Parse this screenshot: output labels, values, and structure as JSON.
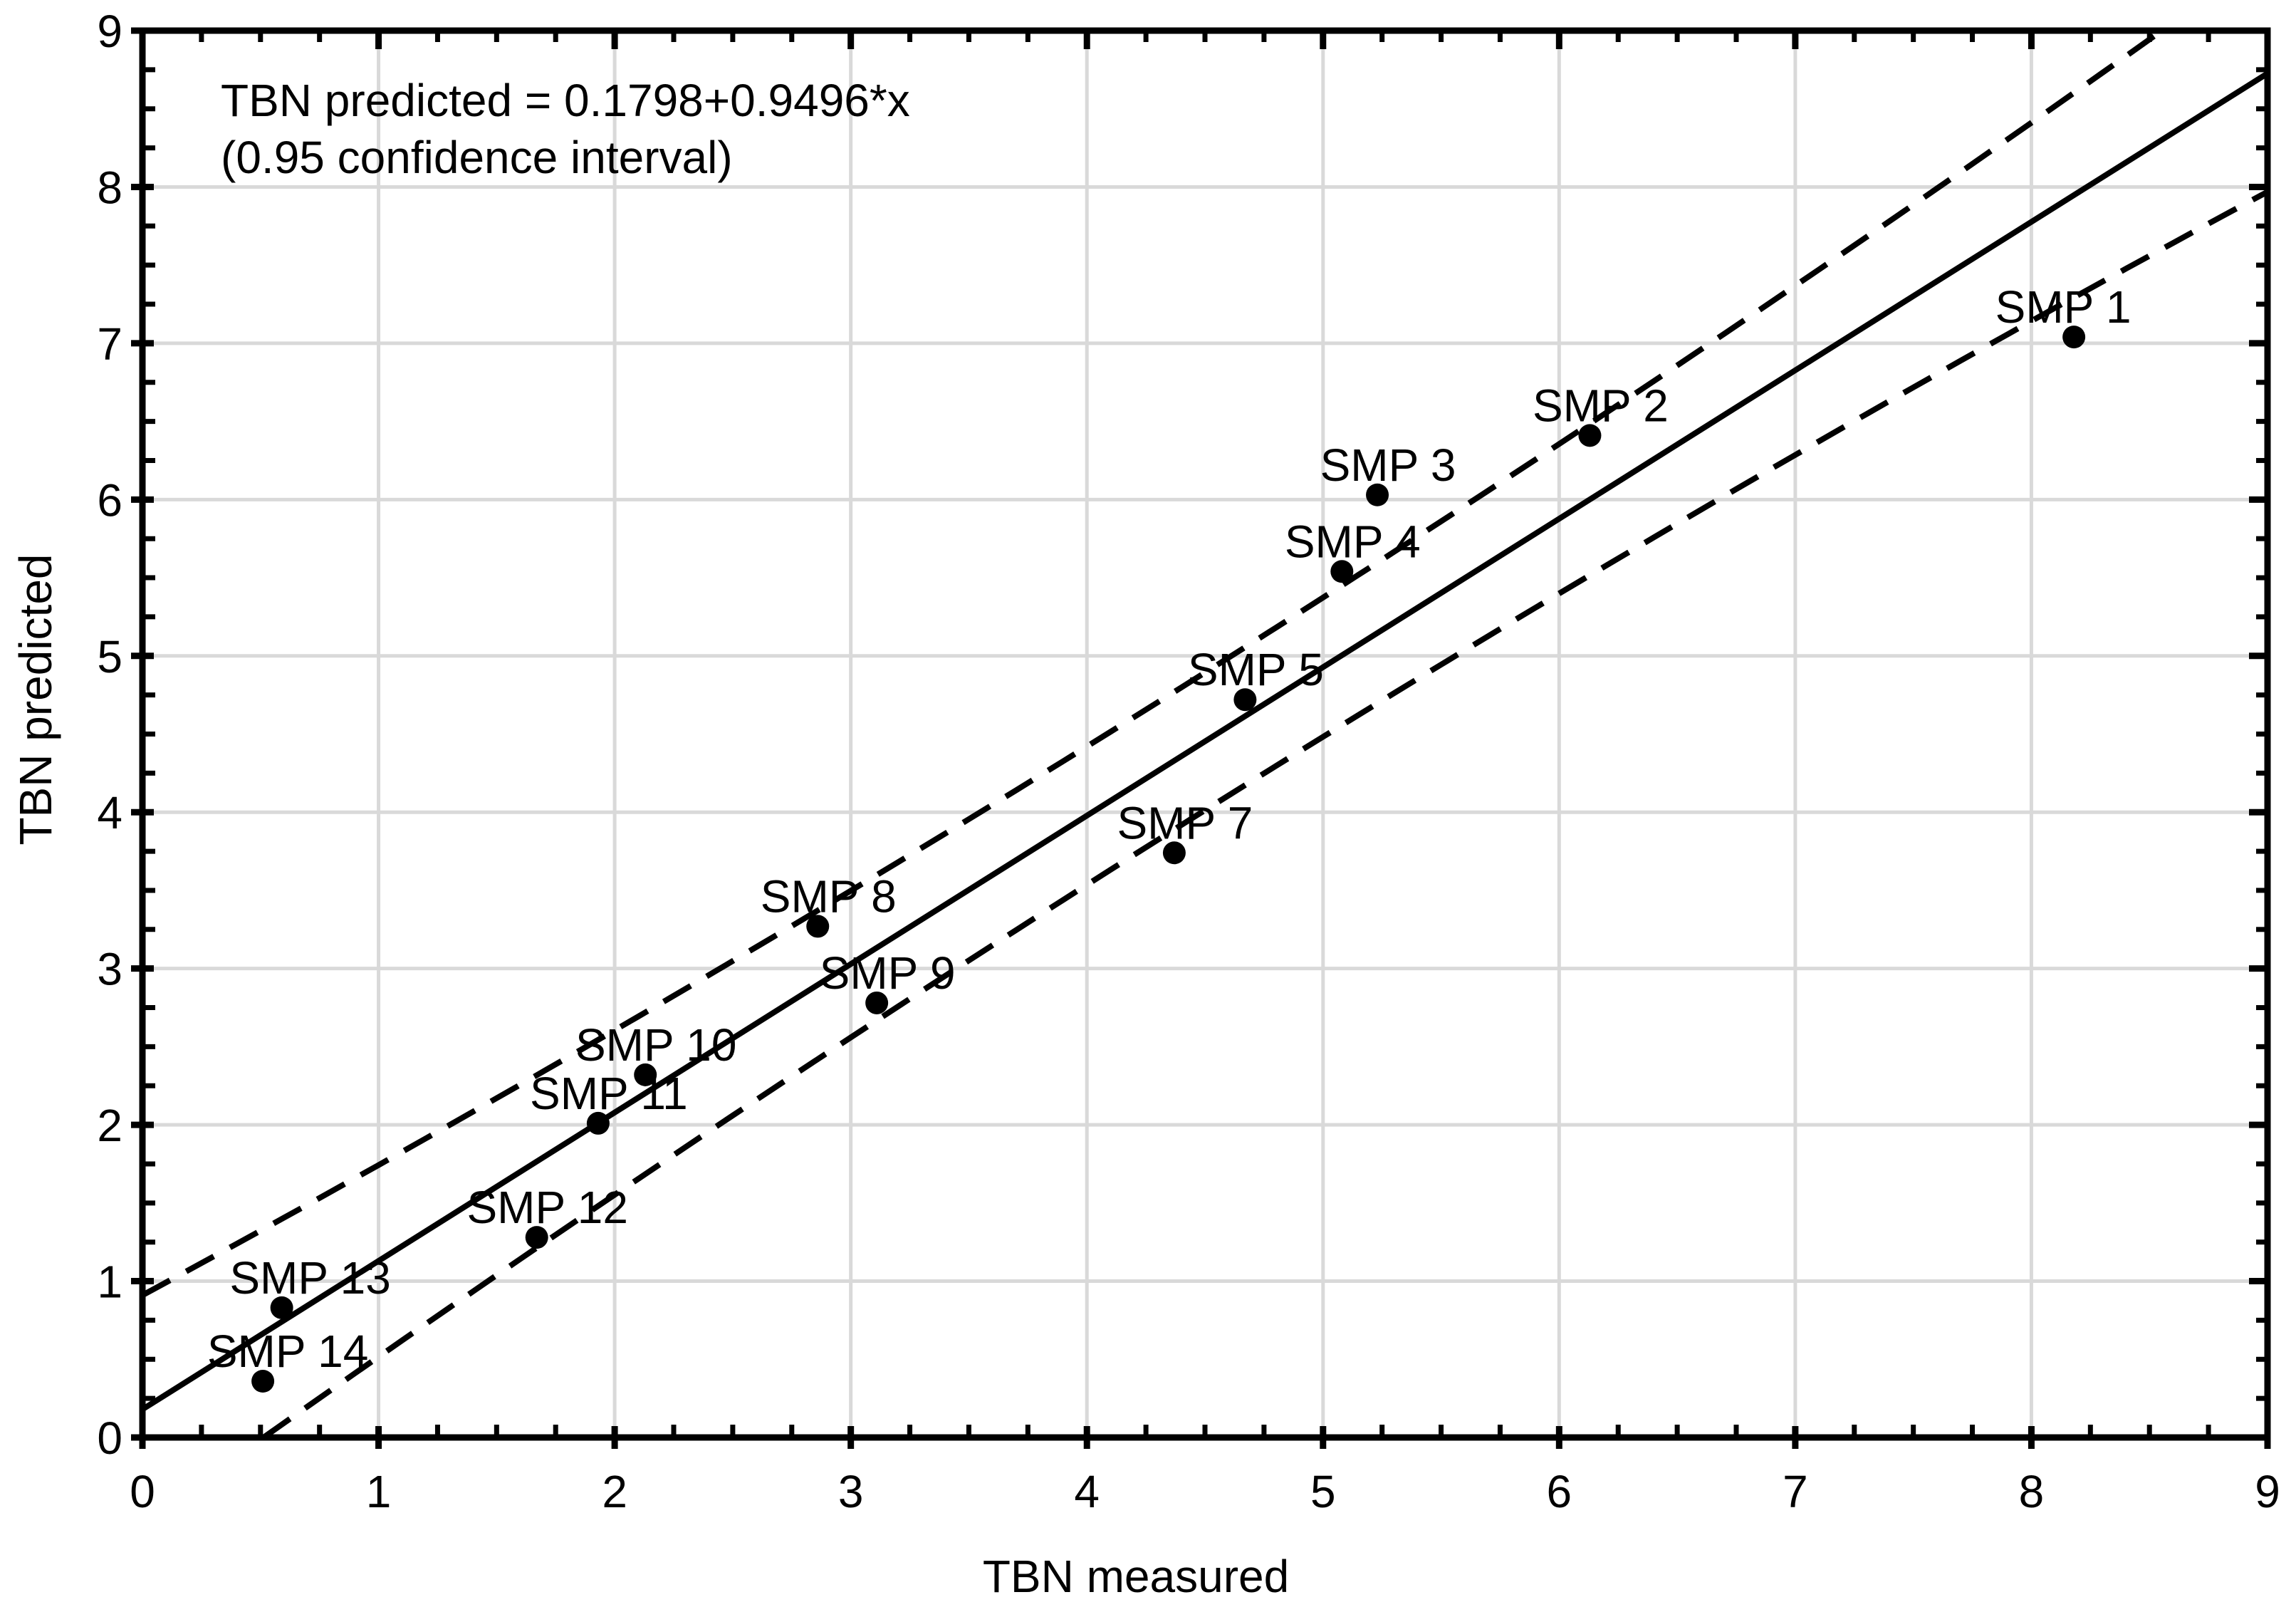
{
  "chart_data": {
    "type": "scatter",
    "annotation": {
      "line1": "TBN predicted = 0.1798+0.9496*x",
      "line2": "(0.95 confidence interval)"
    },
    "xlabel": "TBN measured",
    "ylabel": "TBN predicted",
    "xlim": [
      0,
      9
    ],
    "ylim": [
      0,
      9
    ],
    "x_tick_labels": [
      "0",
      "1",
      "2",
      "3",
      "4",
      "5",
      "6",
      "7",
      "8",
      "9"
    ],
    "y_tick_labels": [
      "0",
      "1",
      "2",
      "3",
      "4",
      "5",
      "6",
      "7",
      "8",
      "9"
    ],
    "minor_tick_step": 0.25,
    "grid": true,
    "points": [
      {
        "label": "SMP 1",
        "x": 8.18,
        "y": 7.04,
        "ldx": -30
      },
      {
        "label": "SMP 2",
        "x": 6.13,
        "y": 6.41
      },
      {
        "label": "SMP 3",
        "x": 5.23,
        "y": 6.03
      },
      {
        "label": "SMP 4",
        "x": 5.08,
        "y": 5.54
      },
      {
        "label": "SMP 5",
        "x": 4.67,
        "y": 4.72
      },
      {
        "label": "SMP 7",
        "x": 4.37,
        "y": 3.74
      },
      {
        "label": "SMP 8",
        "x": 2.86,
        "y": 3.27
      },
      {
        "label": "SMP 9",
        "x": 3.11,
        "y": 2.78
      },
      {
        "label": "SMP 10",
        "x": 2.13,
        "y": 2.32
      },
      {
        "label": "SMP 11",
        "x": 1.93,
        "y": 2.01
      },
      {
        "label": "SMP 12",
        "x": 1.67,
        "y": 1.28
      },
      {
        "label": "SMP 13",
        "x": 0.59,
        "y": 0.83,
        "ldx": 25
      },
      {
        "label": "SMP 14",
        "x": 0.51,
        "y": 0.36,
        "ldx": 20
      }
    ],
    "regression": {
      "intercept": 0.1798,
      "slope": 0.9496,
      "equation": "TBN predicted = 0.1798+0.9496*x"
    },
    "confidence_band": {
      "level": 0.95,
      "style": "dashed",
      "offset_min": 0.44,
      "offset_curvature": 0.015,
      "offset_center_x": 4.4
    }
  },
  "colors": {
    "ink": "#000000",
    "grid": "#d9d9d9",
    "background": "#ffffff"
  }
}
